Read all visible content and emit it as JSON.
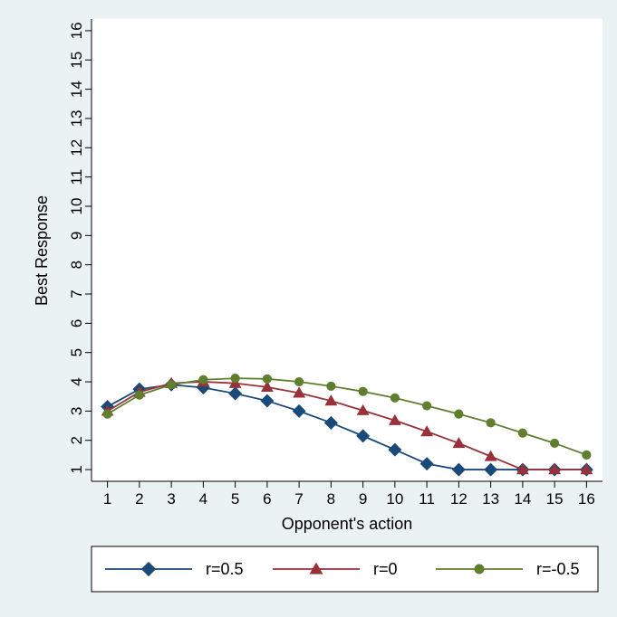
{
  "chart_data": {
    "type": "line",
    "title": "",
    "xlabel": "Opponent's action",
    "ylabel": "Best Response",
    "x": [
      1,
      2,
      3,
      4,
      5,
      6,
      7,
      8,
      9,
      10,
      11,
      12,
      13,
      14,
      15,
      16
    ],
    "xlim": [
      0.5,
      16.5
    ],
    "ylim": [
      0.6,
      16.4
    ],
    "xticks": [
      "1",
      "2",
      "3",
      "4",
      "5",
      "6",
      "7",
      "8",
      "9",
      "10",
      "11",
      "12",
      "13",
      "14",
      "15",
      "16"
    ],
    "yticks": [
      "1",
      "2",
      "3",
      "4",
      "5",
      "6",
      "7",
      "8",
      "9",
      "10",
      "11",
      "12",
      "13",
      "14",
      "15",
      "16"
    ],
    "grid": false,
    "legend_position": "bottom",
    "series": [
      {
        "name": "r=0.5",
        "color": "#1a4a7a",
        "marker": "diamond",
        "values": [
          3.15,
          3.75,
          3.9,
          3.8,
          3.6,
          3.35,
          3.0,
          2.6,
          2.15,
          1.68,
          1.2,
          1.0,
          1.0,
          1.0,
          1.0,
          1.0
        ]
      },
      {
        "name": "r=0",
        "color": "#98313a",
        "marker": "triangle",
        "values": [
          3.0,
          3.65,
          3.95,
          4.0,
          3.95,
          3.82,
          3.62,
          3.35,
          3.02,
          2.68,
          2.3,
          1.9,
          1.45,
          1.0,
          1.0,
          1.0
        ]
      },
      {
        "name": "r=-0.5",
        "color": "#5f7f2e",
        "marker": "circle",
        "values": [
          2.9,
          3.55,
          3.9,
          4.07,
          4.12,
          4.1,
          4.0,
          3.85,
          3.67,
          3.45,
          3.18,
          2.9,
          2.6,
          2.25,
          1.9,
          1.5
        ]
      }
    ]
  }
}
